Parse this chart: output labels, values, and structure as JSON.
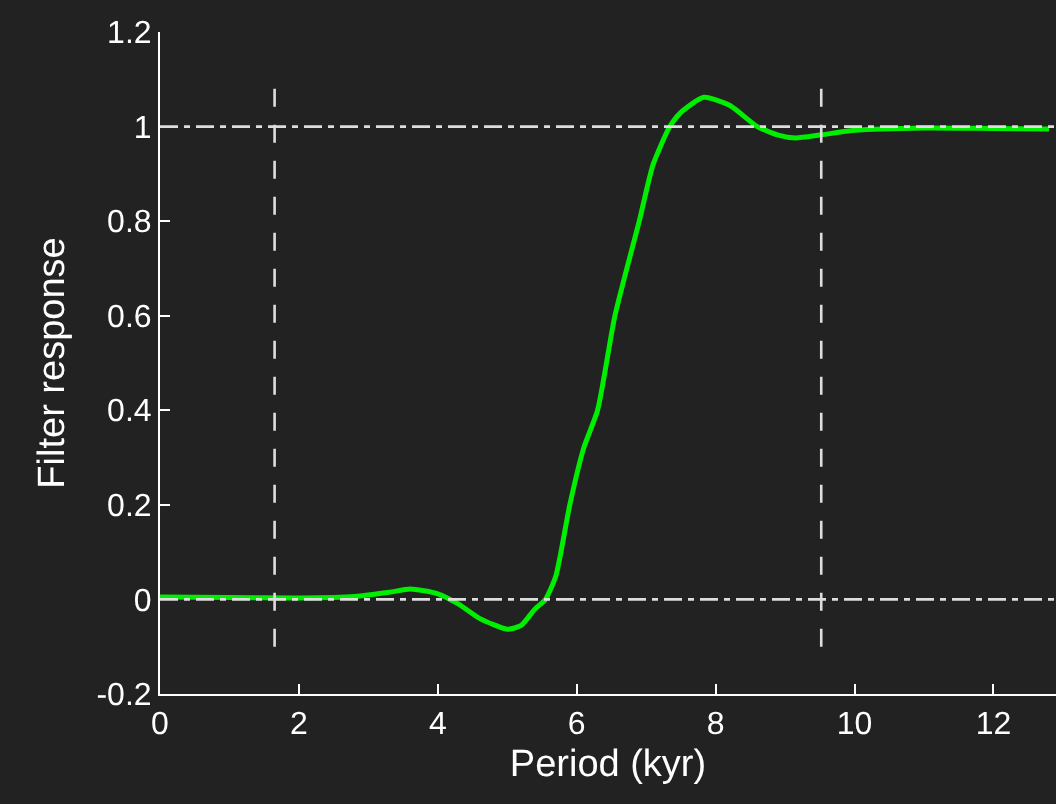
{
  "chart_data": {
    "type": "line",
    "xlabel": "Period (kyr)",
    "ylabel": "Filter response",
    "x": [
      0,
      1,
      2,
      2.8,
      3.3,
      3.6,
      4.0,
      4.3,
      4.6,
      5.0,
      5.2,
      5.4,
      5.55,
      5.7,
      5.9,
      6.1,
      6.3,
      6.55,
      6.9,
      7.1,
      7.34,
      7.5,
      7.83,
      8.2,
      8.6,
      8.9,
      9.15,
      9.5,
      10,
      11,
      12,
      12.8
    ],
    "series": [
      {
        "color": "#00ee00",
        "values": [
          0.005,
          0.004,
          0.003,
          0.006,
          0.015,
          0.022,
          0.012,
          -0.01,
          -0.04,
          -0.063,
          -0.055,
          -0.02,
          0,
          0.05,
          0.2,
          0.32,
          0.4,
          0.6,
          0.8,
          0.92,
          1.0,
          1.03,
          1.062,
          1.045,
          1.0,
          0.982,
          0.976,
          0.982,
          0.992,
          0.997,
          0.996,
          0.995
        ]
      }
    ],
    "xlim": [
      0,
      12.9
    ],
    "ylim": [
      -0.2,
      1.2
    ],
    "xticks": [
      0,
      2,
      4,
      6,
      8,
      10,
      12
    ],
    "yticks": [
      -0.2,
      0,
      0.2,
      0.4,
      0.6,
      0.8,
      1,
      1.2
    ],
    "marker": "none",
    "line_style": "solid",
    "ref_lines": [
      {
        "axis": "y",
        "value": 0,
        "color": "#dddddd",
        "line_style": "dashdot"
      },
      {
        "axis": "y",
        "value": 1,
        "color": "#dddddd",
        "line_style": "dashdot"
      },
      {
        "axis": "x",
        "value": 1.65,
        "color": "#dddddd",
        "line_style": "dashed"
      },
      {
        "axis": "x",
        "value": 9.52,
        "color": "#dddddd",
        "line_style": "dashed"
      }
    ]
  }
}
